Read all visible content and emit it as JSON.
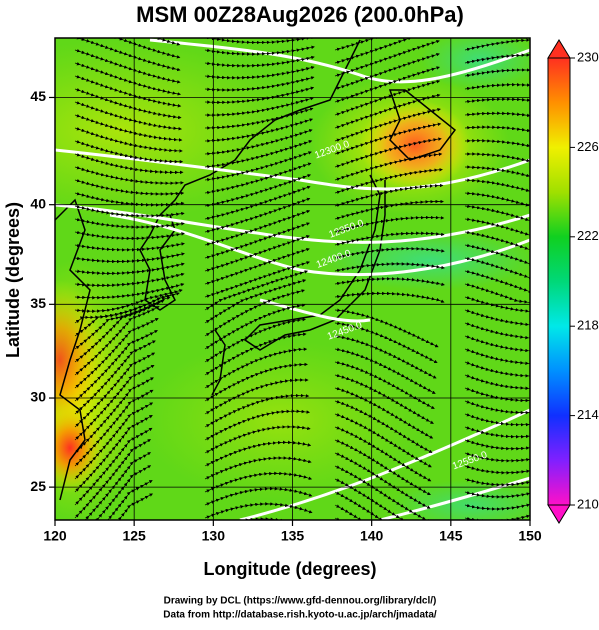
{
  "chart_data": {
    "type": "field-map",
    "title": "MSM 00Z28Aug2026 (200.0hPa)",
    "x_label": "Longitude (degrees)",
    "y_label": "Latitude  (degrees)",
    "projection": "mercator",
    "xlim": [
      120,
      150
    ],
    "xticks": [
      120,
      125,
      130,
      135,
      140,
      145,
      150
    ],
    "ylim": [
      23.1,
      47.6
    ],
    "yticks": [
      25,
      30,
      35,
      40,
      45
    ],
    "grid": true,
    "colorbar": {
      "range": [
        210,
        230
      ],
      "ticks": [
        210,
        214,
        218,
        222,
        226,
        230
      ],
      "stops": [
        {
          "value": 210,
          "color": "#ff10c8"
        },
        {
          "value": 212,
          "color": "#8020ff"
        },
        {
          "value": 214,
          "color": "#1030ff"
        },
        {
          "value": 216,
          "color": "#0090ff"
        },
        {
          "value": 218,
          "color": "#00e8e8"
        },
        {
          "value": 220,
          "color": "#00d878"
        },
        {
          "value": 222,
          "color": "#10d020"
        },
        {
          "value": 224,
          "color": "#a0e000"
        },
        {
          "value": 226,
          "color": "#f0f000"
        },
        {
          "value": 228,
          "color": "#ff9000"
        },
        {
          "value": 230,
          "color": "#ff3020"
        }
      ]
    },
    "contour_labels": [
      {
        "text": "12300.0",
        "lon": 137.5,
        "lat": 42.6
      },
      {
        "text": "12350.0",
        "lon": 138.4,
        "lat": 38.8
      },
      {
        "text": "12400.0",
        "lon": 137.6,
        "lat": 37.3
      },
      {
        "text": "12450.0",
        "lon": 138.3,
        "lat": 33.6
      },
      {
        "text": "12550.0",
        "lon": 146.2,
        "lat": 26.5
      }
    ],
    "credits": [
      "Drawing by DCL (https://www.gfd-dennou.org/library/dcl/)",
      "Data from http://database.rish.kyoto-u.ac.jp/arch/jmadata/"
    ]
  }
}
